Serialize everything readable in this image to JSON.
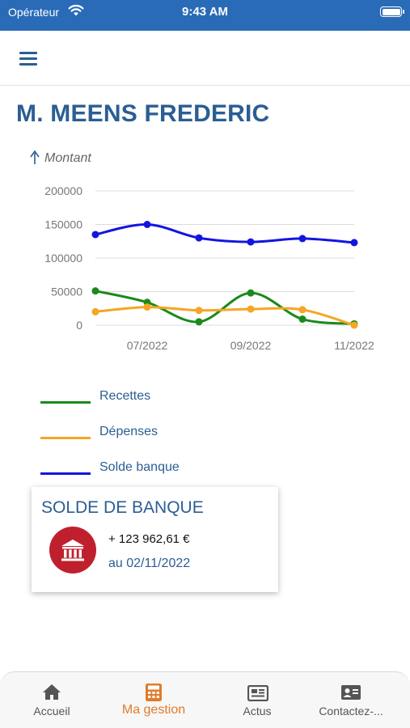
{
  "status_bar": {
    "carrier": "Opérateur",
    "time": "9:43 AM"
  },
  "header": {
    "menu_icon": "hamburger-menu-icon"
  },
  "page": {
    "title": "M. MEENS FREDERIC"
  },
  "colors": {
    "primary": "#2b5e93",
    "recettes": "#1a8a1a",
    "depenses": "#f5a623",
    "solde": "#1414e0",
    "accent": "#e07b2a",
    "badge": "#c0202d",
    "statusbar": "#2a6bb8"
  },
  "chart_data": {
    "type": "line",
    "ylabel": "Montant",
    "ylim": [
      0,
      200000
    ],
    "y_ticks": [
      "200000",
      "150000",
      "100000",
      "50000",
      "0"
    ],
    "x_ticks": [
      {
        "label": "07/2022",
        "x": 1
      },
      {
        "label": "09/2022",
        "x": 3
      },
      {
        "label": "11/2022",
        "x": 5
      }
    ],
    "x": [
      0,
      1,
      2,
      3,
      4,
      5
    ],
    "series": [
      {
        "name": "Recettes",
        "color": "#1a8a1a",
        "values": [
          51000,
          34000,
          5000,
          48000,
          9000,
          2000
        ]
      },
      {
        "name": "Dépenses",
        "color": "#f5a623",
        "values": [
          20000,
          27000,
          22000,
          24000,
          23000,
          0
        ]
      },
      {
        "name": "Solde banque",
        "color": "#1414e0",
        "values": [
          135000,
          150000,
          130000,
          124000,
          129000,
          123000
        ]
      }
    ]
  },
  "legend": [
    {
      "label": "Recettes",
      "color": "#1a8a1a"
    },
    {
      "label": "Dépenses",
      "color": "#f5a623"
    },
    {
      "label": "Solde banque",
      "color": "#1414e0"
    }
  ],
  "card": {
    "title": "SOLDE DE BANQUE",
    "icon": "bank-icon",
    "amount": "+ 123 962,61 €",
    "date": "au 02/11/2022"
  },
  "tabs": [
    {
      "label": "Accueil",
      "icon": "home-icon",
      "active": false
    },
    {
      "label": "Ma gestion",
      "icon": "calculator-icon",
      "active": true
    },
    {
      "label": "Actus",
      "icon": "newspaper-icon",
      "active": false
    },
    {
      "label": "Contactez-...",
      "icon": "contact-card-icon",
      "active": false
    }
  ]
}
